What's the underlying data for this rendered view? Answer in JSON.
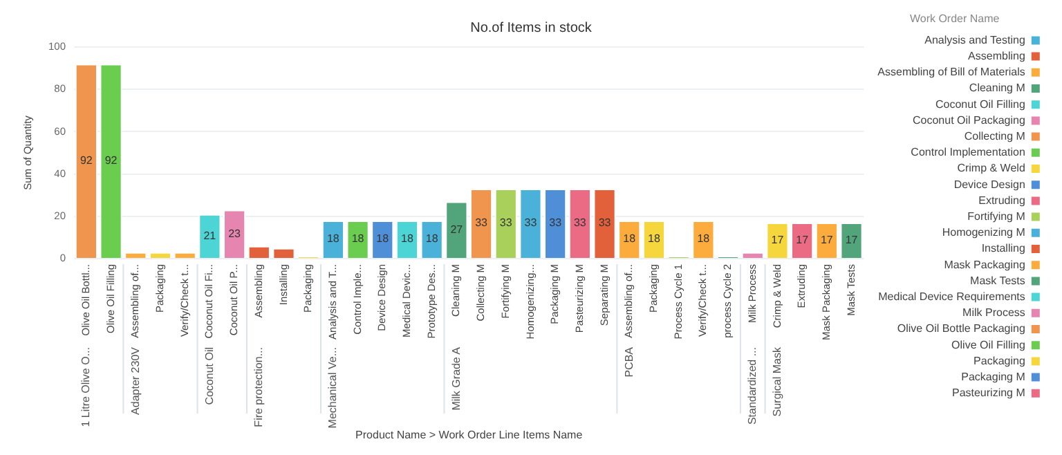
{
  "chart_data": {
    "type": "bar",
    "title": "No.of Items in stock",
    "ylabel": "Sum of Quantity",
    "legend_title": "Work Order Name",
    "categories": [
      "Olive Oil Bottl...",
      "Olive Oil Filling",
      "Assembling of...",
      "Packaging",
      "Verify/Check t...",
      "Coconut Oil Fi...",
      "Coconut Oil P...",
      "Assembling",
      "Installing",
      "Packaging",
      "Analysis and T...",
      "Control Imple...",
      "Device Design",
      "Medical Devic...",
      "Prototype Des...",
      "Cleaning M",
      "Collecting M",
      "Fortifying M",
      "Homogenizing...",
      "Packaging M",
      "Pasteurizing M",
      "Separating M",
      "Assembling of...",
      "Packaging",
      "Process Cycle 1",
      "Verify/Check t...",
      "process Cycle 2",
      "Milk Process",
      "Crimp & Weld",
      "Extruding",
      "Mask Packaging",
      "Mask Tests"
    ],
    "annotations": [
      "1 Litre Olive O...",
      "Adapter 230V",
      "Coconut Oil",
      "Fire protection...",
      "Mechanical Ve...",
      "Milk Grade A",
      "PCBA",
      "Standardized ...",
      "Surgical Mask",
      "Product Name > Work Order Line Items Name"
    ],
    "series": [
      {
        "name": "Analysis and Testing",
        "color": "#4ab2d9",
        "values": [
          null,
          null,
          null,
          null,
          null,
          null,
          null,
          null,
          null,
          null,
          18,
          null,
          null,
          null,
          null,
          null,
          null,
          null,
          null,
          null,
          null,
          null,
          null,
          null,
          null,
          null,
          null,
          null,
          null,
          null,
          null,
          null
        ],
        "value_labels": [
          null,
          null,
          null,
          null,
          null,
          null,
          null,
          null,
          null,
          null,
          "18",
          null,
          null,
          null,
          null,
          null,
          null,
          null,
          null,
          null,
          null,
          null,
          null,
          null,
          null,
          null,
          null,
          null,
          null,
          null,
          null,
          null
        ]
      },
      {
        "name": "Assembling",
        "color": "#e2603a",
        "values": [
          null,
          null,
          null,
          null,
          null,
          null,
          null,
          6,
          null,
          null,
          null,
          null,
          null,
          null,
          null,
          null,
          null,
          null,
          null,
          null,
          null,
          null,
          null,
          null,
          null,
          null,
          null,
          null,
          null,
          null,
          null,
          null
        ]
      },
      {
        "name": "Assembling of Bill of Materials",
        "color": "#fbac3c",
        "values": [
          null,
          null,
          3,
          null,
          null,
          null,
          null,
          null,
          null,
          null,
          null,
          null,
          null,
          null,
          null,
          null,
          null,
          null,
          null,
          null,
          null,
          null,
          18,
          null,
          null,
          null,
          null,
          null,
          null,
          null,
          null,
          null
        ],
        "value_labels": [
          null,
          null,
          null,
          null,
          null,
          null,
          null,
          null,
          null,
          null,
          null,
          null,
          null,
          null,
          null,
          null,
          null,
          null,
          null,
          null,
          null,
          null,
          "18",
          null,
          null,
          null,
          null,
          null,
          null,
          null,
          null,
          null
        ]
      },
      {
        "name": "Cleaning M",
        "color": "#52a57a",
        "values": [
          null,
          null,
          null,
          null,
          null,
          null,
          null,
          null,
          null,
          null,
          null,
          null,
          null,
          null,
          null,
          27,
          null,
          null,
          null,
          null,
          null,
          null,
          null,
          null,
          null,
          null,
          null,
          null,
          null,
          null,
          null,
          null
        ],
        "value_labels": [
          null,
          null,
          null,
          null,
          null,
          null,
          null,
          null,
          null,
          null,
          null,
          null,
          null,
          null,
          null,
          "27",
          null,
          null,
          null,
          null,
          null,
          null,
          null,
          null,
          null,
          null,
          null,
          null,
          null,
          null,
          null,
          null
        ]
      },
      {
        "name": "Coconut Oil Filling",
        "color": "#4dd4d4",
        "values": [
          null,
          null,
          null,
          null,
          null,
          21,
          null,
          null,
          null,
          null,
          null,
          null,
          null,
          null,
          null,
          null,
          null,
          null,
          null,
          null,
          null,
          null,
          null,
          null,
          null,
          null,
          null,
          null,
          null,
          null,
          null,
          null
        ],
        "value_labels": [
          null,
          null,
          null,
          null,
          null,
          "21",
          null,
          null,
          null,
          null,
          null,
          null,
          null,
          null,
          null,
          null,
          null,
          null,
          null,
          null,
          null,
          null,
          null,
          null,
          null,
          null,
          null,
          null,
          null,
          null,
          null,
          null
        ]
      },
      {
        "name": "Coconut Oil Packaging",
        "color": "#e685b0",
        "values": [
          null,
          null,
          null,
          null,
          null,
          null,
          23,
          null,
          null,
          null,
          null,
          null,
          null,
          null,
          null,
          null,
          null,
          null,
          null,
          null,
          null,
          null,
          null,
          null,
          null,
          null,
          null,
          null,
          null,
          null,
          null,
          null
        ],
        "value_labels": [
          null,
          null,
          null,
          null,
          null,
          null,
          "23",
          null,
          null,
          null,
          null,
          null,
          null,
          null,
          null,
          null,
          null,
          null,
          null,
          null,
          null,
          null,
          null,
          null,
          null,
          null,
          null,
          null,
          null,
          null,
          null,
          null
        ]
      },
      {
        "name": "Collecting M",
        "color": "#f0954e",
        "values": [
          null,
          null,
          null,
          null,
          null,
          null,
          null,
          null,
          null,
          null,
          null,
          null,
          null,
          null,
          null,
          null,
          33,
          null,
          null,
          null,
          null,
          null,
          null,
          null,
          null,
          null,
          null,
          null,
          null,
          null,
          null,
          null
        ],
        "value_labels": [
          null,
          null,
          null,
          null,
          null,
          null,
          null,
          null,
          null,
          null,
          null,
          null,
          null,
          null,
          null,
          null,
          "33",
          null,
          null,
          null,
          null,
          null,
          null,
          null,
          null,
          null,
          null,
          null,
          null,
          null,
          null,
          null
        ]
      },
      {
        "name": "Control Implementation",
        "color": "#6acd50",
        "values": [
          null,
          null,
          null,
          null,
          null,
          null,
          null,
          null,
          null,
          null,
          null,
          18,
          null,
          null,
          null,
          null,
          null,
          null,
          null,
          null,
          null,
          null,
          null,
          null,
          null,
          null,
          null,
          null,
          null,
          null,
          null,
          null
        ],
        "value_labels": [
          null,
          null,
          null,
          null,
          null,
          null,
          null,
          null,
          null,
          null,
          null,
          "18",
          null,
          null,
          null,
          null,
          null,
          null,
          null,
          null,
          null,
          null,
          null,
          null,
          null,
          null,
          null,
          null,
          null,
          null,
          null,
          null
        ]
      },
      {
        "name": "Crimp & Weld",
        "color": "#f5d63d",
        "values": [
          null,
          null,
          null,
          null,
          null,
          null,
          null,
          null,
          null,
          null,
          null,
          null,
          null,
          null,
          null,
          null,
          null,
          null,
          null,
          null,
          null,
          null,
          null,
          null,
          null,
          null,
          null,
          null,
          17,
          null,
          null,
          null
        ],
        "value_labels": [
          null,
          null,
          null,
          null,
          null,
          null,
          null,
          null,
          null,
          null,
          null,
          null,
          null,
          null,
          null,
          null,
          null,
          null,
          null,
          null,
          null,
          null,
          null,
          null,
          null,
          null,
          null,
          null,
          "17",
          null,
          null,
          null
        ]
      },
      {
        "name": "Device Design",
        "color": "#4f8fd8",
        "values": [
          null,
          null,
          null,
          null,
          null,
          null,
          null,
          null,
          null,
          null,
          null,
          null,
          18,
          null,
          null,
          null,
          null,
          null,
          null,
          null,
          null,
          null,
          null,
          null,
          null,
          null,
          null,
          null,
          null,
          null,
          null,
          null
        ],
        "value_labels": [
          null,
          null,
          null,
          null,
          null,
          null,
          null,
          null,
          null,
          null,
          null,
          null,
          "18",
          null,
          null,
          null,
          null,
          null,
          null,
          null,
          null,
          null,
          null,
          null,
          null,
          null,
          null,
          null,
          null,
          null,
          null,
          null
        ]
      },
      {
        "name": "Extruding",
        "color": "#eb6a84",
        "values": [
          null,
          null,
          null,
          null,
          null,
          null,
          null,
          null,
          null,
          null,
          null,
          null,
          null,
          null,
          null,
          null,
          null,
          null,
          null,
          null,
          null,
          null,
          null,
          null,
          null,
          null,
          null,
          null,
          null,
          17,
          null,
          null
        ],
        "value_labels": [
          null,
          null,
          null,
          null,
          null,
          null,
          null,
          null,
          null,
          null,
          null,
          null,
          null,
          null,
          null,
          null,
          null,
          null,
          null,
          null,
          null,
          null,
          null,
          null,
          null,
          null,
          null,
          null,
          null,
          "17",
          null,
          null
        ]
      },
      {
        "name": "Fortifying M",
        "color": "#a9d05a",
        "values": [
          null,
          null,
          null,
          null,
          null,
          null,
          null,
          null,
          null,
          null,
          null,
          null,
          null,
          null,
          null,
          null,
          null,
          33,
          null,
          null,
          null,
          null,
          null,
          null,
          null,
          null,
          null,
          null,
          null,
          null,
          null,
          null
        ],
        "value_labels": [
          null,
          null,
          null,
          null,
          null,
          null,
          null,
          null,
          null,
          null,
          null,
          null,
          null,
          null,
          null,
          null,
          null,
          "33",
          null,
          null,
          null,
          null,
          null,
          null,
          null,
          null,
          null,
          null,
          null,
          null,
          null,
          null
        ]
      },
      {
        "name": "Homogenizing M",
        "color": "#4ab2d9",
        "values": [
          null,
          null,
          null,
          null,
          null,
          null,
          null,
          null,
          null,
          null,
          null,
          null,
          null,
          null,
          null,
          null,
          null,
          null,
          33,
          null,
          null,
          null,
          null,
          null,
          null,
          null,
          null,
          null,
          null,
          null,
          null,
          null
        ],
        "value_labels": [
          null,
          null,
          null,
          null,
          null,
          null,
          null,
          null,
          null,
          null,
          null,
          null,
          null,
          null,
          null,
          null,
          null,
          null,
          "33",
          null,
          null,
          null,
          null,
          null,
          null,
          null,
          null,
          null,
          null,
          null,
          null,
          null
        ]
      },
      {
        "name": "Installing",
        "color": "#e2603a",
        "values": [
          null,
          null,
          null,
          null,
          null,
          null,
          null,
          null,
          5,
          null,
          null,
          null,
          null,
          null,
          null,
          null,
          null,
          null,
          null,
          null,
          null,
          null,
          null,
          null,
          null,
          null,
          null,
          null,
          null,
          null,
          null,
          null
        ]
      },
      {
        "name": "Mask Packaging",
        "color": "#fbac3c",
        "values": [
          null,
          null,
          null,
          null,
          null,
          null,
          null,
          null,
          null,
          null,
          null,
          null,
          null,
          null,
          null,
          null,
          null,
          null,
          null,
          null,
          null,
          null,
          null,
          null,
          null,
          null,
          null,
          null,
          null,
          null,
          17,
          null
        ],
        "value_labels": [
          null,
          null,
          null,
          null,
          null,
          null,
          null,
          null,
          null,
          null,
          null,
          null,
          null,
          null,
          null,
          null,
          null,
          null,
          null,
          null,
          null,
          null,
          null,
          null,
          null,
          null,
          null,
          null,
          null,
          null,
          "17",
          null
        ]
      },
      {
        "name": "Mask Tests",
        "color": "#52a57a",
        "values": [
          null,
          null,
          null,
          null,
          null,
          null,
          null,
          null,
          null,
          null,
          null,
          null,
          null,
          null,
          null,
          null,
          null,
          null,
          null,
          null,
          null,
          null,
          null,
          null,
          null,
          null,
          null,
          null,
          null,
          null,
          null,
          17
        ],
        "value_labels": [
          null,
          null,
          null,
          null,
          null,
          null,
          null,
          null,
          null,
          null,
          null,
          null,
          null,
          null,
          null,
          null,
          null,
          null,
          null,
          null,
          null,
          null,
          null,
          null,
          null,
          null,
          null,
          null,
          null,
          null,
          null,
          "17"
        ]
      },
      {
        "name": "Medical Device Requirements",
        "color": "#4dd4d4",
        "values": [
          null,
          null,
          null,
          null,
          null,
          null,
          null,
          null,
          null,
          null,
          null,
          null,
          null,
          18,
          null,
          null,
          null,
          null,
          null,
          null,
          null,
          null,
          null,
          null,
          null,
          null,
          null,
          null,
          null,
          null,
          null,
          null
        ],
        "value_labels": [
          null,
          null,
          null,
          null,
          null,
          null,
          null,
          null,
          null,
          null,
          null,
          null,
          null,
          "18",
          null,
          null,
          null,
          null,
          null,
          null,
          null,
          null,
          null,
          null,
          null,
          null,
          null,
          null,
          null,
          null,
          null,
          null
        ]
      },
      {
        "name": "Milk Process",
        "color": "#e685b0",
        "values": [
          null,
          null,
          null,
          null,
          null,
          null,
          null,
          null,
          null,
          null,
          null,
          null,
          null,
          null,
          null,
          null,
          null,
          null,
          null,
          null,
          null,
          null,
          null,
          null,
          null,
          null,
          null,
          3,
          null,
          null,
          null,
          null
        ]
      },
      {
        "name": "Olive Oil Bottle Packaging",
        "color": "#f0954e",
        "values": [
          92,
          null,
          null,
          null,
          null,
          null,
          null,
          null,
          null,
          null,
          null,
          null,
          null,
          null,
          null,
          null,
          null,
          null,
          null,
          null,
          null,
          null,
          null,
          null,
          null,
          null,
          null,
          null,
          null,
          null,
          null,
          null
        ],
        "value_labels": [
          "92",
          null,
          null,
          null,
          null,
          null,
          null,
          null,
          null,
          null,
          null,
          null,
          null,
          null,
          null,
          null,
          null,
          null,
          null,
          null,
          null,
          null,
          null,
          null,
          null,
          null,
          null,
          null,
          null,
          null,
          null,
          null
        ]
      },
      {
        "name": "Olive Oil Filling",
        "color": "#6acd50",
        "values": [
          null,
          92,
          null,
          null,
          null,
          null,
          null,
          null,
          null,
          null,
          null,
          null,
          null,
          null,
          null,
          null,
          null,
          null,
          null,
          null,
          null,
          null,
          null,
          null,
          null,
          null,
          null,
          null,
          null,
          null,
          null,
          null
        ],
        "value_labels": [
          null,
          "92",
          null,
          null,
          null,
          null,
          null,
          null,
          null,
          null,
          null,
          null,
          null,
          null,
          null,
          null,
          null,
          null,
          null,
          null,
          null,
          null,
          null,
          null,
          null,
          null,
          null,
          null,
          null,
          null,
          null,
          null
        ]
      },
      {
        "name": "Packaging",
        "color": "#f5d63d",
        "values": [
          null,
          null,
          null,
          3,
          null,
          null,
          null,
          null,
          null,
          1,
          null,
          null,
          null,
          null,
          null,
          null,
          null,
          null,
          null,
          null,
          null,
          null,
          null,
          18,
          null,
          null,
          null,
          null,
          null,
          null,
          null,
          null
        ],
        "value_labels": [
          null,
          null,
          null,
          null,
          null,
          null,
          null,
          null,
          null,
          null,
          null,
          null,
          null,
          null,
          null,
          null,
          null,
          null,
          null,
          null,
          null,
          null,
          null,
          "18",
          null,
          null,
          null,
          null,
          null,
          null,
          null,
          null
        ]
      },
      {
        "name": "Packaging M",
        "color": "#4f8fd8",
        "values": [
          null,
          null,
          null,
          null,
          null,
          null,
          null,
          null,
          null,
          null,
          null,
          null,
          null,
          null,
          null,
          null,
          null,
          null,
          null,
          33,
          null,
          null,
          null,
          null,
          null,
          null,
          null,
          null,
          null,
          null,
          null,
          null
        ],
        "value_labels": [
          null,
          null,
          null,
          null,
          null,
          null,
          null,
          null,
          null,
          null,
          null,
          null,
          null,
          null,
          null,
          null,
          null,
          null,
          null,
          "33",
          null,
          null,
          null,
          null,
          null,
          null,
          null,
          null,
          null,
          null,
          null,
          null
        ]
      },
      {
        "name": "Pasteurizing M",
        "color": "#eb6a84",
        "values": [
          null,
          null,
          null,
          null,
          null,
          null,
          null,
          null,
          null,
          null,
          null,
          null,
          null,
          null,
          null,
          null,
          null,
          null,
          null,
          null,
          33,
          null,
          null,
          null,
          null,
          null,
          null,
          null,
          null,
          null,
          null,
          null
        ],
        "value_labels": [
          null,
          null,
          null,
          null,
          null,
          null,
          null,
          null,
          null,
          null,
          null,
          null,
          null,
          null,
          null,
          null,
          null,
          null,
          null,
          null,
          "33",
          null,
          null,
          null,
          null,
          null,
          null,
          null,
          null,
          null,
          null,
          null
        ]
      },
      {
        "color": "#a9d05a",
        "values": [
          null,
          null,
          null,
          null,
          null,
          null,
          null,
          null,
          null,
          null,
          null,
          null,
          null,
          null,
          null,
          null,
          null,
          null,
          null,
          null,
          null,
          null,
          null,
          null,
          1,
          null,
          null,
          null,
          null,
          null,
          null,
          null
        ]
      },
      {
        "color": "#4ab2d9",
        "values": [
          null,
          null,
          null,
          null,
          null,
          null,
          null,
          null,
          null,
          null,
          null,
          null,
          null,
          null,
          18,
          null,
          null,
          null,
          null,
          null,
          null,
          null,
          null,
          null,
          null,
          null,
          null,
          null,
          null,
          null,
          null,
          null
        ],
        "value_labels": [
          null,
          null,
          null,
          null,
          null,
          null,
          null,
          null,
          null,
          null,
          null,
          null,
          null,
          null,
          "18",
          null,
          null,
          null,
          null,
          null,
          null,
          null,
          null,
          null,
          null,
          null,
          null,
          null,
          null,
          null,
          null,
          null
        ]
      },
      {
        "color": "#e2603a",
        "values": [
          null,
          null,
          null,
          null,
          null,
          null,
          null,
          null,
          null,
          null,
          null,
          null,
          null,
          null,
          null,
          null,
          null,
          null,
          null,
          null,
          null,
          33,
          null,
          null,
          null,
          null,
          null,
          null,
          null,
          null,
          null,
          null
        ],
        "value_labels": [
          null,
          null,
          null,
          null,
          null,
          null,
          null,
          null,
          null,
          null,
          null,
          null,
          null,
          null,
          null,
          null,
          null,
          null,
          null,
          null,
          null,
          "33",
          null,
          null,
          null,
          null,
          null,
          null,
          null,
          null,
          null,
          null
        ]
      },
      {
        "color": "#fbac3c",
        "values": [
          null,
          null,
          null,
          null,
          3,
          null,
          null,
          null,
          null,
          null,
          null,
          null,
          null,
          null,
          null,
          null,
          null,
          null,
          null,
          null,
          null,
          null,
          null,
          null,
          null,
          18,
          null,
          null,
          null,
          null,
          null,
          null
        ],
        "value_labels": [
          null,
          null,
          null,
          null,
          null,
          null,
          null,
          null,
          null,
          null,
          null,
          null,
          null,
          null,
          null,
          null,
          null,
          null,
          null,
          null,
          null,
          null,
          null,
          null,
          null,
          "18",
          null,
          null,
          null,
          null,
          null,
          null
        ]
      },
      {
        "color": "#52a57a",
        "values": [
          null,
          null,
          null,
          null,
          null,
          null,
          null,
          null,
          null,
          null,
          null,
          null,
          null,
          null,
          null,
          null,
          null,
          null,
          null,
          null,
          null,
          null,
          null,
          null,
          null,
          null,
          1,
          null,
          null,
          null,
          null,
          null
        ]
      }
    ],
    "ylim": [
      0,
      100
    ],
    "yticks": [
      0,
      20,
      40,
      60,
      80,
      100
    ],
    "grid": "y",
    "legend": "right"
  }
}
